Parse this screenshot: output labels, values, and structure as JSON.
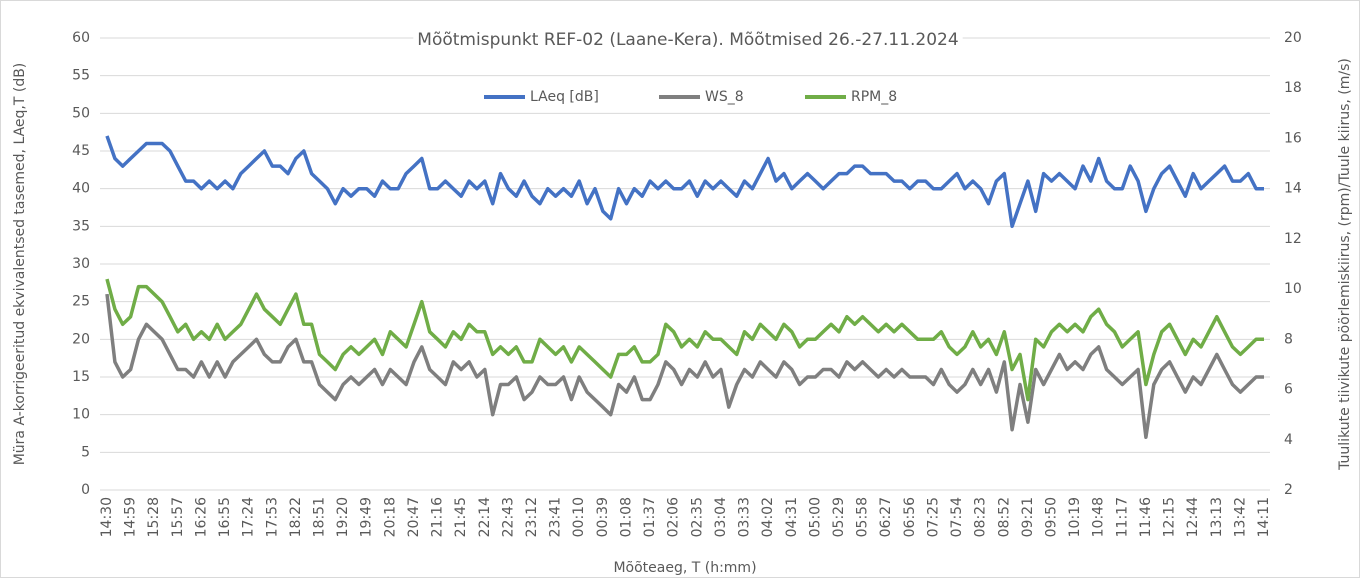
{
  "chart_data": {
    "type": "line",
    "title": "Mõõtmispunkt REF-02 (Laane-Kera). Mõõtmised 26.-27.11.2024",
    "x_label": "Mõõteaeg, T (h:mm)",
    "y_label": "Müra A-korrigeeritud ekvivalentsed tasemed, LAeq,T (dB)",
    "y2_label": "Tuulikute tiivikute pöörlemiskiirus, (rpm)/Tuule kiirus, (m/s)",
    "grid": true,
    "ylim": [
      0,
      60
    ],
    "yticks": [
      0,
      5,
      10,
      15,
      20,
      25,
      30,
      35,
      40,
      45,
      50,
      55,
      60
    ],
    "y2lim": [
      2,
      20
    ],
    "y2ticks": [
      2,
      4,
      6,
      8,
      10,
      12,
      14,
      16,
      18,
      20
    ],
    "categories": [
      "14:30",
      null,
      null,
      "14:59",
      null,
      null,
      "15:28",
      null,
      null,
      "15:57",
      null,
      null,
      "16:26",
      null,
      null,
      "16:55",
      null,
      null,
      "17:24",
      null,
      null,
      "17:53",
      null,
      null,
      "18:22",
      null,
      null,
      "18:51",
      null,
      null,
      "19:20",
      null,
      null,
      "19:49",
      null,
      null,
      "20:18",
      null,
      null,
      "20:47",
      null,
      null,
      "21:16",
      null,
      null,
      "21:45",
      null,
      null,
      "22:14",
      null,
      null,
      "22:43",
      null,
      null,
      "23:12",
      null,
      null,
      "23:41",
      null,
      null,
      "00:10",
      null,
      null,
      "00:39",
      null,
      null,
      "01:08",
      null,
      null,
      "01:37",
      null,
      null,
      "02:06",
      null,
      null,
      "02:35",
      null,
      null,
      "03:04",
      null,
      null,
      "03:33",
      null,
      null,
      "04:02",
      null,
      null,
      "04:31",
      null,
      null,
      "05:00",
      null,
      null,
      "05:29",
      null,
      null,
      "05:58",
      null,
      null,
      "06:27",
      null,
      null,
      "06:56",
      null,
      null,
      "07:25",
      null,
      null,
      "07:54",
      null,
      null,
      "08:23",
      null,
      null,
      "08:52",
      null,
      null,
      "09:21",
      null,
      null,
      "09:50",
      null,
      null,
      "10:19",
      null,
      null,
      "10:48",
      null,
      null,
      "11:17",
      null,
      null,
      "11:46",
      null,
      null,
      "12:15",
      null,
      null,
      "12:44",
      null,
      null,
      "13:13",
      null,
      null,
      "13:42",
      null,
      null,
      "14:11"
    ],
    "series": [
      {
        "name": "LAeq [dB]",
        "color": "#4472c4",
        "values": [
          47,
          44,
          43,
          44,
          45,
          46,
          46,
          46,
          45,
          43,
          41,
          41,
          40,
          41,
          40,
          41,
          40,
          42,
          43,
          44,
          45,
          43,
          43,
          42,
          44,
          45,
          42,
          41,
          40,
          38,
          40,
          39,
          40,
          40,
          39,
          41,
          40,
          40,
          42,
          43,
          44,
          40,
          40,
          41,
          40,
          39,
          41,
          40,
          41,
          38,
          42,
          40,
          39,
          41,
          39,
          38,
          40,
          39,
          40,
          39,
          41,
          38,
          40,
          37,
          36,
          40,
          38,
          40,
          39,
          41,
          40,
          41,
          40,
          40,
          41,
          39,
          41,
          40,
          41,
          40,
          39,
          41,
          40,
          42,
          44,
          41,
          42,
          40,
          41,
          42,
          41,
          40,
          41,
          42,
          42,
          43,
          43,
          42,
          42,
          42,
          41,
          41,
          40,
          41,
          41,
          40,
          40,
          41,
          42,
          40,
          41,
          40,
          38,
          41,
          42,
          35,
          38,
          41,
          37,
          42,
          41,
          42,
          41,
          40,
          43,
          41,
          44,
          41,
          40,
          40,
          43,
          41,
          37,
          40,
          42,
          43,
          41,
          39,
          42,
          40,
          41,
          42,
          43,
          41,
          41,
          42,
          40,
          40
        ]
      },
      {
        "name": "WS_8",
        "color": "#7f7f7f",
        "axis": "y2",
        "values": [
          9.8,
          7.1,
          6.5,
          6.8,
          8.0,
          8.6,
          8.3,
          8.0,
          7.4,
          6.8,
          6.8,
          6.5,
          7.1,
          6.5,
          7.1,
          6.5,
          7.1,
          7.4,
          7.7,
          8.0,
          7.4,
          7.1,
          7.1,
          7.7,
          8.0,
          7.1,
          7.1,
          6.2,
          5.9,
          5.6,
          6.2,
          6.5,
          6.2,
          6.5,
          6.8,
          6.2,
          6.8,
          6.5,
          6.2,
          7.1,
          7.7,
          6.8,
          6.5,
          6.2,
          7.1,
          6.8,
          7.1,
          6.5,
          6.8,
          5.0,
          6.2,
          6.2,
          6.5,
          5.6,
          5.9,
          6.5,
          6.2,
          6.2,
          6.5,
          5.6,
          6.5,
          5.9,
          5.6,
          5.3,
          5.0,
          6.2,
          5.9,
          6.5,
          5.6,
          5.6,
          6.2,
          7.1,
          6.8,
          6.2,
          6.8,
          6.5,
          7.1,
          6.5,
          6.8,
          5.3,
          6.2,
          6.8,
          6.5,
          7.1,
          6.8,
          6.5,
          7.1,
          6.8,
          6.2,
          6.5,
          6.5,
          6.8,
          6.8,
          6.5,
          7.1,
          6.8,
          7.1,
          6.8,
          6.5,
          6.8,
          6.5,
          6.8,
          6.5,
          6.5,
          6.5,
          6.2,
          6.8,
          6.2,
          5.9,
          6.2,
          6.8,
          6.2,
          6.8,
          5.9,
          7.1,
          4.4,
          6.2,
          4.7,
          6.8,
          6.2,
          6.8,
          7.4,
          6.8,
          7.1,
          6.8,
          7.4,
          7.7,
          6.8,
          6.5,
          6.2,
          6.5,
          6.8,
          4.1,
          6.2,
          6.8,
          7.1,
          6.5,
          5.9,
          6.5,
          6.2,
          6.8,
          7.4,
          6.8,
          6.2,
          5.9,
          6.2,
          6.5,
          6.5
        ]
      },
      {
        "name": "RPM_8",
        "color": "#70ad47",
        "axis": "y2",
        "values": [
          10.4,
          9.2,
          8.6,
          8.9,
          10.1,
          10.1,
          9.8,
          9.5,
          8.9,
          8.3,
          8.6,
          8.0,
          8.3,
          8.0,
          8.6,
          8.0,
          8.3,
          8.6,
          9.2,
          9.8,
          9.2,
          8.9,
          8.6,
          9.2,
          9.8,
          8.6,
          8.6,
          7.4,
          7.1,
          6.8,
          7.4,
          7.7,
          7.4,
          7.7,
          8.0,
          7.4,
          8.3,
          8.0,
          7.7,
          8.6,
          9.5,
          8.3,
          8.0,
          7.7,
          8.3,
          8.0,
          8.6,
          8.3,
          8.3,
          7.4,
          7.7,
          7.4,
          7.7,
          7.1,
          7.1,
          8.0,
          7.7,
          7.4,
          7.7,
          7.1,
          7.7,
          7.4,
          7.1,
          6.8,
          6.5,
          7.4,
          7.4,
          7.7,
          7.1,
          7.1,
          7.4,
          8.6,
          8.3,
          7.7,
          8.0,
          7.7,
          8.3,
          8.0,
          8.0,
          7.7,
          7.4,
          8.3,
          8.0,
          8.6,
          8.3,
          8.0,
          8.6,
          8.3,
          7.7,
          8.0,
          8.0,
          8.3,
          8.6,
          8.3,
          8.9,
          8.6,
          8.9,
          8.6,
          8.3,
          8.6,
          8.3,
          8.6,
          8.3,
          8.0,
          8.0,
          8.0,
          8.3,
          7.7,
          7.4,
          7.7,
          8.3,
          7.7,
          8.0,
          7.4,
          8.3,
          6.8,
          7.4,
          5.6,
          8.0,
          7.7,
          8.3,
          8.6,
          8.3,
          8.6,
          8.3,
          8.9,
          9.2,
          8.6,
          8.3,
          7.7,
          8.0,
          8.3,
          6.2,
          7.4,
          8.3,
          8.6,
          8.0,
          7.4,
          8.0,
          7.7,
          8.3,
          8.9,
          8.3,
          7.7,
          7.4,
          7.7,
          8.0,
          8.0
        ]
      }
    ]
  }
}
